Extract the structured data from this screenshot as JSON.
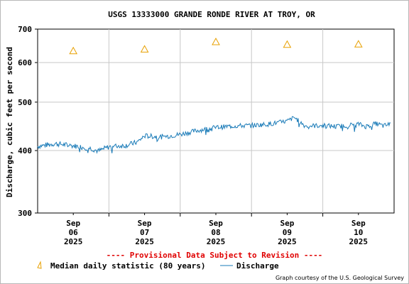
{
  "chart_data": {
    "type": "line",
    "title": "USGS 13333000 GRANDE RONDE RIVER AT TROY, OR",
    "ylabel": "Discharge, cubic feet per second",
    "xlabel": "",
    "y_scale": "log",
    "ylim": [
      300,
      700
    ],
    "y_ticks": [
      "300",
      "400",
      "500",
      "600",
      "700"
    ],
    "y_tick_values": [
      300,
      400,
      500,
      600,
      700
    ],
    "x_range_days": [
      0,
      5
    ],
    "x_ticks": [
      {
        "day": 0.5,
        "lines": [
          "Sep",
          "06",
          "2025"
        ]
      },
      {
        "day": 1.5,
        "lines": [
          "Sep",
          "07",
          "2025"
        ]
      },
      {
        "day": 2.5,
        "lines": [
          "Sep",
          "08",
          "2025"
        ]
      },
      {
        "day": 3.5,
        "lines": [
          "Sep",
          "09",
          "2025"
        ]
      },
      {
        "day": 4.5,
        "lines": [
          "Sep",
          "10",
          "2025"
        ]
      }
    ],
    "grid": true,
    "series": [
      {
        "name": "Median daily statistic (80 years)",
        "marker": "triangle",
        "color": "#e8a000",
        "x": [
          0.5,
          1.5,
          2.5,
          3.5,
          4.5
        ],
        "y": [
          633,
          638,
          660,
          652,
          653
        ]
      },
      {
        "name": "Discharge",
        "marker": "line",
        "color": "#1a7bb8",
        "x": [
          0,
          0.25,
          0.5,
          0.75,
          0.85,
          1.0,
          1.25,
          1.4,
          1.5,
          1.75,
          2.0,
          2.25,
          2.5,
          2.75,
          3.0,
          3.25,
          3.5,
          3.6,
          3.75,
          4.0,
          4.2,
          4.5,
          4.6,
          4.75,
          4.85,
          4.95
        ],
        "y": [
          408,
          413,
          409,
          404,
          399,
          407,
          410,
          416,
          428,
          426,
          431,
          439,
          445,
          448,
          449,
          452,
          458,
          466,
          448,
          449,
          447,
          452,
          447,
          453,
          448,
          452
        ],
        "noise": 5
      }
    ],
    "legend_placement": "bottom-left"
  },
  "provisional_note": "---- Provisional Data Subject to Revision ----",
  "credit": "Graph courtesy of the U.S. Geological Survey"
}
